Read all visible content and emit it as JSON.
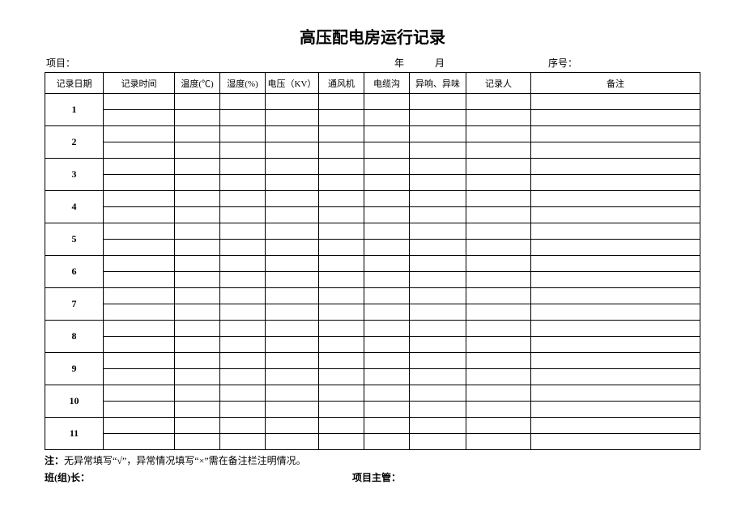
{
  "title": "高压配电房运行记录",
  "header": {
    "project_label": "项目：",
    "year_label": "年",
    "month_label": "月",
    "seq_label": "序号："
  },
  "columns": {
    "date": "记录日期",
    "time": "记录时间",
    "temp": "温度(℃)",
    "humid": "湿度(%)",
    "volt": "电压（KV）",
    "fan": "通风机",
    "cable": "电缆沟",
    "noise": "异响、异味",
    "recorder": "记录人",
    "remark": "备注"
  },
  "rows": [
    "1",
    "2",
    "3",
    "4",
    "5",
    "6",
    "7",
    "8",
    "9",
    "10",
    "11"
  ],
  "footer": {
    "note_label": "注：",
    "note_text": "无异常填写“√”，异常情况填写“×”需在备注栏注明情况。",
    "leader_label": "班(组)长：",
    "manager_label": "项目主管："
  },
  "style": {
    "border_color": "#000000",
    "background_color": "#ffffff",
    "text_color": "#000000",
    "title_fontsize": 20,
    "body_fontsize": 12,
    "cell_fontsize": 11
  }
}
